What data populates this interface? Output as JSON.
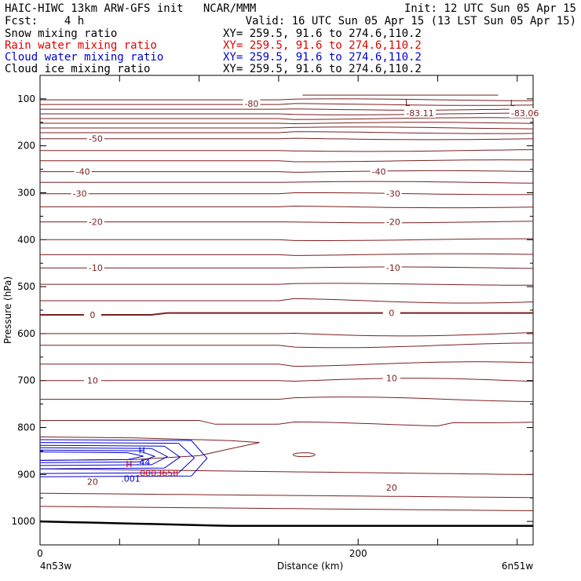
{
  "header": {
    "line1_left": "HAIC-HIWC 13km ARW-GFS init   NCAR/MMM",
    "line1_right": "Init: 12 UTC Sun 05 Apr 15",
    "line2_left": "Fcst:    4 h",
    "line2_right": "Valid: 16 UTC Sun 05 Apr 15 (13 LST Sun 05 Apr 15)",
    "fields": [
      {
        "name": "Snow mixing ratio",
        "xy": "XY= 259.5, 91.6 to 274.6,110.2",
        "color": "#000000"
      },
      {
        "name": "Rain water mixing ratio",
        "xy": "XY= 259.5, 91.6 to 274.6,110.2",
        "color": "#e00000"
      },
      {
        "name": "Cloud water mixing ratio",
        "xy": "XY= 259.5, 91.6 to 274.6,110.2",
        "color": "#0000d0"
      },
      {
        "name": "Cloud ice mixing ratio",
        "xy": "XY= 259.5, 91.6 to 274.6,110.2",
        "color": "#000000"
      }
    ]
  },
  "chart_data": {
    "type": "line",
    "xlabel": "Distance (km)",
    "ylabel": "Pressure (hPa)",
    "x_ticks": [
      0,
      200
    ],
    "x_range": [
      0,
      310
    ],
    "y_ticks": [
      100,
      200,
      300,
      400,
      500,
      600,
      700,
      800,
      900,
      1000
    ],
    "y_range": [
      50,
      1050
    ],
    "x_endpoint_labels": {
      "left": "4n53w",
      "right": "6n51w"
    },
    "contour_color": "#7a1f1f",
    "cloud_water_color": "#0000d0",
    "rain_color": "#e00000",
    "isotherm_labels": [
      {
        "text": "-80",
        "x": 133,
        "p": 110
      },
      {
        "text": "-50",
        "x": 35,
        "p": 185
      },
      {
        "text": "-40",
        "x": 27,
        "p": 255
      },
      {
        "text": "-40",
        "x": 213,
        "p": 255
      },
      {
        "text": "-30",
        "x": 25,
        "p": 302
      },
      {
        "text": "-30",
        "x": 222,
        "p": 302
      },
      {
        "text": "-20",
        "x": 35,
        "p": 362
      },
      {
        "text": "-20",
        "x": 222,
        "p": 362
      },
      {
        "text": "-10",
        "x": 35,
        "p": 460
      },
      {
        "text": "-10",
        "x": 222,
        "p": 460
      },
      {
        "text": "0",
        "x": 33,
        "p": 560
      },
      {
        "text": "0",
        "x": 221,
        "p": 556
      },
      {
        "text": "10",
        "x": 33,
        "p": 700
      },
      {
        "text": "10",
        "x": 221,
        "p": 695
      },
      {
        "text": "20",
        "x": 33,
        "p": 915
      },
      {
        "text": "20",
        "x": 221,
        "p": 928
      }
    ],
    "minima": [
      {
        "symbol": "L",
        "value": "-83.11",
        "x": 231,
        "p": 100
      },
      {
        "symbol": "L",
        "value": "-83.06",
        "x": 297,
        "p": 100
      }
    ],
    "cloud_water": {
      "max_symbol": "H",
      "max_value": ".44",
      "min_value": ".001"
    },
    "rain": {
      "max_symbol": "H",
      "max_value": ".0003658"
    }
  }
}
